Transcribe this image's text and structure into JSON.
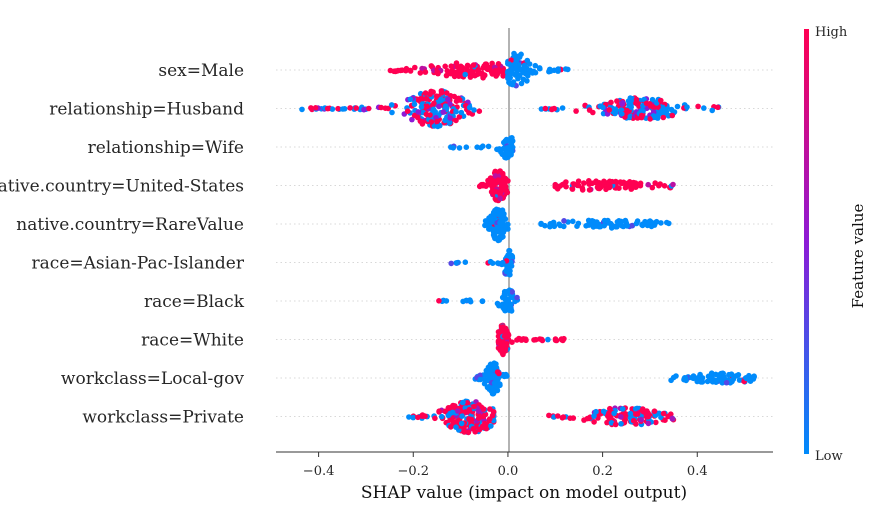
{
  "chart_data": {
    "type": "scatter",
    "subtype": "shap-beeswarm",
    "title": "",
    "xlabel": "SHAP value (impact on model output)",
    "xlim": [
      -0.49,
      0.56
    ],
    "xticks": [
      -0.4,
      -0.2,
      0.0,
      0.2,
      0.4
    ],
    "xtick_labels": [
      "−0.4",
      "−0.2",
      "0.0",
      "0.2",
      "0.4"
    ],
    "colorbar": {
      "title": "Feature value",
      "high_label": "High",
      "low_label": "Low",
      "low_color": "#008bfb",
      "high_color": "#ff0052"
    },
    "features": [
      {
        "name": "sex=Male",
        "groups": [
          {
            "from": -0.25,
            "to": -0.01,
            "peak": -0.07,
            "spread": 0.08,
            "color": "high",
            "count": 110,
            "maxh": 7
          },
          {
            "from": 0.0,
            "to": 0.13,
            "peak": 0.02,
            "spread": 0.03,
            "color": "low",
            "count": 90,
            "maxh": 16
          }
        ]
      },
      {
        "name": "relationship=Husband",
        "groups": [
          {
            "from": -0.44,
            "to": -0.06,
            "peak": -0.15,
            "spread": 0.06,
            "color": "mixed",
            "count": 230,
            "maxh": 17
          },
          {
            "from": 0.07,
            "to": 0.45,
            "peak": 0.28,
            "spread": 0.08,
            "color": "mixed",
            "count": 180,
            "maxh": 10
          }
        ]
      },
      {
        "name": "relationship=Wife",
        "groups": [
          {
            "from": -0.14,
            "to": 0.01,
            "peak": 0.0,
            "spread": 0.02,
            "color": "low",
            "count": 45,
            "maxh": 10
          }
        ]
      },
      {
        "name": "native.country=United-States",
        "groups": [
          {
            "from": -0.06,
            "to": 0.0,
            "peak": -0.02,
            "spread": 0.015,
            "color": "high",
            "count": 100,
            "maxh": 15
          },
          {
            "from": 0.1,
            "to": 0.35,
            "peak": 0.2,
            "spread": 0.1,
            "color": "high",
            "count": 90,
            "maxh": 4
          }
        ]
      },
      {
        "name": "native.country=RareValue",
        "groups": [
          {
            "from": -0.05,
            "to": 0.0,
            "peak": -0.02,
            "spread": 0.015,
            "color": "low",
            "count": 110,
            "maxh": 16
          },
          {
            "from": 0.07,
            "to": 0.37,
            "peak": 0.2,
            "spread": 0.12,
            "color": "low",
            "count": 80,
            "maxh": 3
          }
        ]
      },
      {
        "name": "race=Asian-Pac-Islander",
        "groups": [
          {
            "from": -0.12,
            "to": 0.01,
            "peak": 0.0,
            "spread": 0.01,
            "color": "low",
            "count": 40,
            "maxh": 13
          }
        ]
      },
      {
        "name": "race=Black",
        "groups": [
          {
            "from": -0.15,
            "to": 0.05,
            "peak": 0.0,
            "spread": 0.015,
            "color": "low",
            "count": 50,
            "maxh": 11
          }
        ]
      },
      {
        "name": "race=White",
        "groups": [
          {
            "from": -0.02,
            "to": 0.12,
            "peak": -0.01,
            "spread": 0.01,
            "color": "high",
            "count": 120,
            "maxh": 14
          }
        ]
      },
      {
        "name": "workclass=Local-gov",
        "groups": [
          {
            "from": -0.07,
            "to": 0.0,
            "peak": -0.03,
            "spread": 0.015,
            "color": "low",
            "count": 100,
            "maxh": 15
          },
          {
            "from": 0.33,
            "to": 0.52,
            "peak": 0.45,
            "spread": 0.08,
            "color": "low",
            "count": 75,
            "maxh": 4
          }
        ]
      },
      {
        "name": "workclass=Private",
        "groups": [
          {
            "from": -0.21,
            "to": -0.03,
            "peak": -0.08,
            "spread": 0.05,
            "color": "mixed-high",
            "count": 190,
            "maxh": 15
          },
          {
            "from": 0.07,
            "to": 0.35,
            "peak": 0.25,
            "spread": 0.07,
            "color": "mixed-high",
            "count": 140,
            "maxh": 8
          }
        ]
      }
    ]
  }
}
